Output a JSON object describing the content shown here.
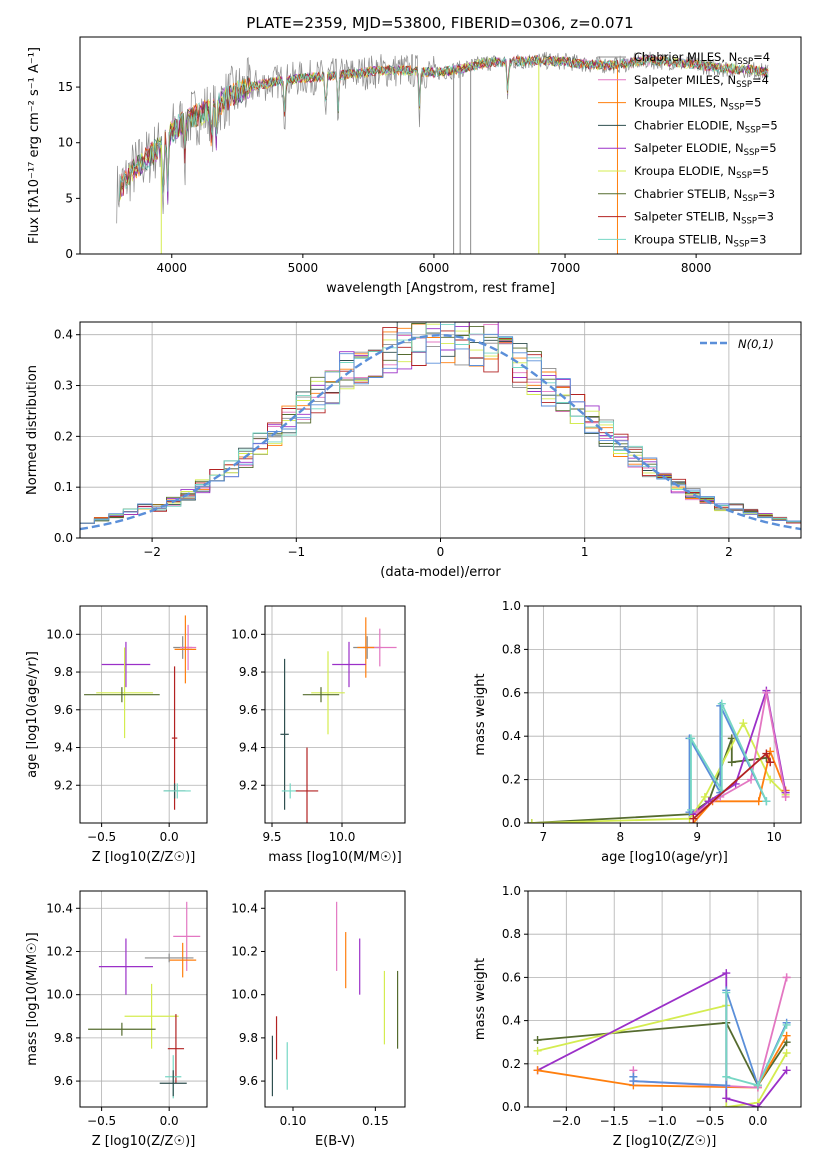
{
  "figure": {
    "title": "PLATE=2359, MJD=53800, FIBERID=0306, z=0.071"
  },
  "colors": {
    "chabrier_miles": "#8c8c8c",
    "salpeter_miles": "#e377c2",
    "kroupa_miles": "#ff7f0e",
    "chabrier_elodie": "#2f4f4f",
    "salpeter_elodie": "#9b30c8",
    "kroupa_elodie": "#d4ec50",
    "chabrier_stelib": "#556b2f",
    "salpeter_stelib": "#b22222",
    "kroupa_stelib": "#76d7c4",
    "normal": "#5b8fd9",
    "grid": "#b0b0b0"
  },
  "chart_data": [
    {
      "id": "spectrum",
      "type": "line",
      "xlabel": "wavelength [Angstrom, rest frame]",
      "ylabel": "Flux [fλ10⁻¹⁷ erg cm⁻² s⁻¹ A⁻¹]",
      "xlim": [
        3300,
        8800
      ],
      "ylim": [
        0,
        19.5
      ],
      "xticks": [
        4000,
        5000,
        6000,
        7000,
        8000
      ],
      "yticks": [
        0,
        5,
        10,
        15
      ],
      "grid": false,
      "legend_position": "right",
      "series": [
        {
          "name": "Chabrier MILES, N_SSP=4",
          "color_key": "chabrier_miles"
        },
        {
          "name": "Salpeter MILES, N_SSP=4",
          "color_key": "salpeter_miles"
        },
        {
          "name": "Kroupa MILES, N_SSP=5",
          "color_key": "kroupa_miles"
        },
        {
          "name": "Chabrier ELODIE, N_SSP=5",
          "color_key": "chabrier_elodie"
        },
        {
          "name": "Salpeter ELODIE, N_SSP=5",
          "color_key": "salpeter_elodie"
        },
        {
          "name": "Kroupa ELODIE, N_SSP=5",
          "color_key": "kroupa_elodie"
        },
        {
          "name": "Chabrier STELIB, N_SSP=3",
          "color_key": "chabrier_stelib"
        },
        {
          "name": "Salpeter STELIB, N_SSP=3",
          "color_key": "salpeter_stelib"
        },
        {
          "name": "Kroupa STELIB, N_SSP=3",
          "color_key": "kroupa_stelib"
        }
      ],
      "continuum": {
        "x": [
          3580,
          3700,
          3800,
          3900,
          4000,
          4100,
          4200,
          4300,
          4400,
          4500,
          4600,
          4800,
          5000,
          5200,
          5400,
          5600,
          5800,
          6000,
          6200,
          6400,
          6600,
          6800,
          7000,
          7200,
          7400,
          7600,
          7800,
          8000,
          8200,
          8400,
          8550
        ],
        "y": [
          5.5,
          7.5,
          8.5,
          9.5,
          11.0,
          12.0,
          12.5,
          13.0,
          13.8,
          14.5,
          15.0,
          15.5,
          15.8,
          16.0,
          16.2,
          16.5,
          16.5,
          16.3,
          16.6,
          17.2,
          17.3,
          17.4,
          17.3,
          17.0,
          17.0,
          17.4,
          17.3,
          17.0,
          16.7,
          16.6,
          16.3
        ]
      },
      "absorption_lines": [
        3934,
        3969,
        4102,
        4304,
        4340,
        4861,
        5175,
        5270,
        5890,
        6563
      ],
      "masked_dips": [
        {
          "x": 3920,
          "color_key": "kroupa_elodie"
        },
        {
          "x": 6150,
          "color_key": "chabrier_miles"
        },
        {
          "x": 6200,
          "color_key": "chabrier_miles"
        },
        {
          "x": 6280,
          "color_key": "chabrier_miles"
        },
        {
          "x": 6800,
          "color_key": "kroupa_elodie"
        },
        {
          "x": 7400,
          "color_key": "kroupa_miles"
        }
      ]
    },
    {
      "id": "residual-histogram",
      "type": "histogram",
      "xlabel": "(data-model)/error",
      "ylabel": "Normed distribution",
      "xlim": [
        -2.5,
        2.5
      ],
      "ylim": [
        0,
        0.425
      ],
      "xticks": [
        -2,
        -1,
        0,
        1,
        2
      ],
      "yticks": [
        0.0,
        0.1,
        0.2,
        0.3,
        0.4
      ],
      "grid": true,
      "bin_width": 0.1,
      "legend_position": "top-right",
      "legend_entry": "N(0,1)",
      "reference_curve": "normal(0,1)"
    },
    {
      "id": "age-vs-metallicity",
      "type": "errorbar",
      "xlabel": "Z [log10(Z/Z☉)]",
      "ylabel": "age  [log10(age/yr)]",
      "xlim": [
        -0.66,
        0.28
      ],
      "ylim": [
        9.0,
        10.15
      ],
      "xticks": [
        -0.5,
        0.0
      ],
      "yticks": [
        9.2,
        9.4,
        9.6,
        9.8,
        10.0
      ],
      "grid": true,
      "points": [
        {
          "color_key": "chabrier_miles",
          "x": 0.1,
          "xerr": 0.07,
          "y": 9.93,
          "yerr": 0.06
        },
        {
          "color_key": "salpeter_miles",
          "x": 0.14,
          "xerr": 0.06,
          "y": 9.93,
          "yerr": 0.12
        },
        {
          "color_key": "kroupa_miles",
          "x": 0.12,
          "xerr": 0.08,
          "y": 9.92,
          "yerr": 0.18
        },
        {
          "color_key": "salpeter_elodie",
          "x": -0.32,
          "xerr": 0.18,
          "y": 9.84,
          "yerr": 0.12
        },
        {
          "color_key": "kroupa_elodie",
          "x": -0.33,
          "xerr": 0.21,
          "y": 9.69,
          "yerr": 0.24
        },
        {
          "color_key": "chabrier_stelib",
          "x": -0.35,
          "xerr": 0.28,
          "y": 9.68,
          "yerr": 0.04
        },
        {
          "color_key": "salpeter_stelib",
          "x": 0.04,
          "xerr": 0.02,
          "y": 9.45,
          "yerr": 0.38
        },
        {
          "color_key": "chabrier_elodie",
          "x": 0.04,
          "xerr": 0.08,
          "y": 9.17,
          "yerr": 0.04
        },
        {
          "color_key": "kroupa_stelib",
          "x": 0.06,
          "xerr": 0.1,
          "y": 9.17,
          "yerr": 0.04
        }
      ]
    },
    {
      "id": "age-vs-mass",
      "type": "errorbar",
      "xlabel": "mass [log10(M/M☉)]",
      "ylabel": "",
      "xlim": [
        9.45,
        10.45
      ],
      "ylim": [
        9.0,
        10.15
      ],
      "xticks": [
        9.5,
        10.0
      ],
      "yticks": [
        9.2,
        9.4,
        9.6,
        9.8,
        10.0
      ],
      "grid": true,
      "points": [
        {
          "color_key": "chabrier_miles",
          "x": 10.18,
          "xerr": 0.1,
          "y": 9.93,
          "yerr": 0.06
        },
        {
          "color_key": "salpeter_miles",
          "x": 10.27,
          "xerr": 0.12,
          "y": 9.93,
          "yerr": 0.1
        },
        {
          "color_key": "kroupa_miles",
          "x": 10.17,
          "xerr": 0.06,
          "y": 9.93,
          "yerr": 0.16
        },
        {
          "color_key": "salpeter_elodie",
          "x": 10.05,
          "xerr": 0.12,
          "y": 9.84,
          "yerr": 0.12
        },
        {
          "color_key": "kroupa_elodie",
          "x": 9.9,
          "xerr": 0.12,
          "y": 9.69,
          "yerr": 0.22
        },
        {
          "color_key": "chabrier_stelib",
          "x": 9.85,
          "xerr": 0.13,
          "y": 9.68,
          "yerr": 0.04
        },
        {
          "color_key": "chabrier_elodie",
          "x": 9.59,
          "xerr": 0.03,
          "y": 9.47,
          "yerr": 0.4
        },
        {
          "color_key": "kroupa_stelib",
          "x": 9.63,
          "xerr": 0.06,
          "y": 9.17,
          "yerr": 0.04
        },
        {
          "color_key": "salpeter_stelib",
          "x": 9.75,
          "xerr": 0.08,
          "y": 9.17,
          "yerr": 0.23
        }
      ]
    },
    {
      "id": "mass-weight-vs-age",
      "type": "line",
      "xlabel": "age  [log10(age/yr)]",
      "ylabel": "mass weight",
      "xlim": [
        6.8,
        10.35
      ],
      "ylim": [
        0.0,
        1.0
      ],
      "xticks": [
        7,
        8,
        9,
        10
      ],
      "yticks": [
        0.0,
        0.2,
        0.4,
        0.6,
        0.8,
        1.0
      ],
      "grid": true,
      "series": [
        {
          "color_key": "chabrier_stelib",
          "x": [
            6.85,
            8.9,
            9.15,
            9.45,
            9.45,
            9.9
          ],
          "y": [
            0.0,
            0.04,
            0.1,
            0.39,
            0.28,
            0.3
          ]
        },
        {
          "color_key": "kroupa_elodie",
          "x": [
            6.85,
            8.9,
            9.1,
            9.6,
            9.95,
            10.15
          ],
          "y": [
            0.0,
            0.02,
            0.12,
            0.46,
            0.2,
            0.13
          ]
        },
        {
          "color_key": "kroupa_miles",
          "x": [
            8.95,
            9.2,
            9.8,
            9.95,
            10.15
          ],
          "y": [
            0.0,
            0.1,
            0.1,
            0.33,
            0.15
          ]
        },
        {
          "color_key": "salpeter_elodie",
          "x": [
            8.95,
            9.15,
            9.5,
            9.9,
            10.15
          ],
          "y": [
            0.04,
            0.1,
            0.18,
            0.61,
            0.14
          ]
        },
        {
          "color_key": "salpeter_miles",
          "x": [
            9.0,
            9.3,
            9.7,
            9.9,
            10.15
          ],
          "y": [
            0.05,
            0.12,
            0.2,
            0.6,
            0.12
          ]
        },
        {
          "color_key": "normal",
          "x": [
            8.9,
            8.9,
            9.3,
            9.3,
            9.9
          ],
          "y": [
            0.05,
            0.39,
            0.14,
            0.54,
            0.1
          ]
        },
        {
          "color_key": "kroupa_stelib",
          "x": [
            8.92,
            8.92,
            9.32,
            9.32,
            9.9
          ],
          "y": [
            0.06,
            0.39,
            0.15,
            0.55,
            0.1
          ]
        },
        {
          "color_key": "salpeter_stelib",
          "x": [
            8.95,
            9.9,
            9.95
          ],
          "y": [
            0.02,
            0.32,
            0.28
          ]
        }
      ]
    },
    {
      "id": "mass-vs-metallicity",
      "type": "errorbar",
      "xlabel": "Z [log10(Z/Z☉)]",
      "ylabel": "mass [log10(M/M☉)]",
      "xlim": [
        -0.66,
        0.28
      ],
      "ylim": [
        9.48,
        10.48
      ],
      "xticks": [
        -0.5,
        0.0
      ],
      "yticks": [
        9.6,
        9.8,
        10.0,
        10.2,
        10.4
      ],
      "grid": true,
      "points": [
        {
          "color_key": "salpeter_miles",
          "x": 0.13,
          "xerr": 0.1,
          "y": 10.27,
          "yerr": 0.16
        },
        {
          "color_key": "kroupa_miles",
          "x": 0.1,
          "xerr": 0.1,
          "y": 10.16,
          "yerr": 0.08
        },
        {
          "color_key": "chabrier_miles",
          "x": 0.0,
          "xerr": 0.18,
          "y": 10.17,
          "yerr": 0.02
        },
        {
          "color_key": "salpeter_elodie",
          "x": -0.32,
          "xerr": 0.2,
          "y": 10.13,
          "yerr": 0.13
        },
        {
          "color_key": "kroupa_elodie",
          "x": -0.13,
          "xerr": 0.2,
          "y": 9.9,
          "yerr": 0.15
        },
        {
          "color_key": "chabrier_stelib",
          "x": -0.35,
          "xerr": 0.25,
          "y": 9.84,
          "yerr": 0.03
        },
        {
          "color_key": "salpeter_stelib",
          "x": 0.05,
          "xerr": 0.06,
          "y": 9.75,
          "yerr": 0.16
        },
        {
          "color_key": "kroupa_stelib",
          "x": 0.03,
          "xerr": 0.06,
          "y": 9.62,
          "yerr": 0.1
        },
        {
          "color_key": "chabrier_elodie",
          "x": 0.03,
          "xerr": 0.1,
          "y": 9.59,
          "yerr": 0.06
        }
      ]
    },
    {
      "id": "mass-vs-ebv",
      "type": "errorbar",
      "xlabel": "E(B-V)",
      "ylabel": "",
      "xlim": [
        0.083,
        0.168
      ],
      "ylim": [
        9.48,
        10.48
      ],
      "xticks": [
        0.1,
        0.15
      ],
      "yticks": [
        9.6,
        9.8,
        10.0,
        10.2,
        10.4
      ],
      "grid": false,
      "points": [
        {
          "color_key": "salpeter_miles",
          "x": 0.1265,
          "y": 10.27,
          "yerr": 0.16
        },
        {
          "color_key": "kroupa_miles",
          "x": 0.132,
          "y": 10.16,
          "yerr": 0.13
        },
        {
          "color_key": "salpeter_elodie",
          "x": 0.1405,
          "y": 10.13,
          "yerr": 0.13
        },
        {
          "color_key": "kroupa_elodie",
          "x": 0.1555,
          "y": 9.94,
          "yerr": 0.17
        },
        {
          "color_key": "chabrier_stelib",
          "x": 0.1635,
          "y": 9.93,
          "yerr": 0.18
        },
        {
          "color_key": "salpeter_stelib",
          "x": 0.09,
          "y": 9.8,
          "yerr": 0.1
        },
        {
          "color_key": "kroupa_stelib",
          "x": 0.0965,
          "y": 9.67,
          "yerr": 0.11
        },
        {
          "color_key": "chabrier_elodie",
          "x": 0.0875,
          "y": 9.67,
          "yerr": 0.14
        }
      ]
    },
    {
      "id": "mass-weight-vs-metallicity",
      "type": "line",
      "xlabel": "Z [log10(Z/Z☉)]",
      "ylabel": "mass weight",
      "xlim": [
        -2.4,
        0.45
      ],
      "ylim": [
        0.0,
        1.0
      ],
      "xticks": [
        -2.0,
        -1.5,
        -1.0,
        -0.5,
        0.0
      ],
      "yticks": [
        0.0,
        0.2,
        0.4,
        0.6,
        0.8,
        1.0
      ],
      "grid": true,
      "series": [
        {
          "color_key": "chabrier_stelib",
          "x": [
            -2.3,
            -0.33,
            0.0,
            0.3
          ],
          "y": [
            0.31,
            0.39,
            0.1,
            0.3
          ]
        },
        {
          "color_key": "kroupa_elodie",
          "x": [
            -2.3,
            -0.33,
            -0.33,
            0.0,
            0.3
          ],
          "y": [
            0.26,
            0.47,
            0.0,
            0.02,
            0.25
          ]
        },
        {
          "color_key": "salpeter_elodie",
          "x": [
            -2.3,
            -0.33,
            -0.33,
            0.0,
            0.3
          ],
          "y": [
            0.17,
            0.62,
            0.04,
            0.0,
            0.17
          ]
        },
        {
          "color_key": "kroupa_miles",
          "x": [
            -2.3,
            -1.3,
            0.0,
            0.0,
            0.3
          ],
          "y": [
            0.17,
            0.1,
            0.09,
            0.1,
            0.33
          ]
        },
        {
          "color_key": "salpeter_miles",
          "x": [
            -1.3,
            -1.3,
            0.0,
            0.3,
            0.3
          ],
          "y": [
            0.17,
            0.12,
            0.09,
            0.6,
            0.6
          ]
        },
        {
          "color_key": "normal",
          "x": [
            -1.3,
            -1.3,
            -0.33,
            -0.33,
            0.0,
            0.3
          ],
          "y": [
            0.14,
            0.12,
            0.1,
            0.54,
            0.1,
            0.39
          ]
        },
        {
          "color_key": "kroupa_stelib",
          "x": [
            -0.33,
            -0.33,
            0.0,
            0.3
          ],
          "y": [
            0.53,
            0.14,
            0.1,
            0.38
          ]
        }
      ]
    }
  ]
}
